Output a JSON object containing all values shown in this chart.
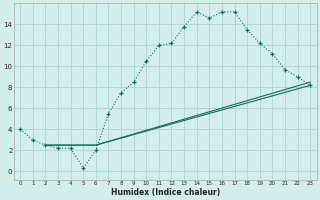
{
  "xlabel": "Humidex (Indice chaleur)",
  "bg_color": "#d4eeeb",
  "grid_color": "#b0d8d4",
  "line_color": "#1a6b5e",
  "xlim": [
    -0.5,
    23.5
  ],
  "ylim": [
    -0.8,
    16
  ],
  "xticks": [
    0,
    1,
    2,
    3,
    4,
    5,
    6,
    7,
    8,
    9,
    10,
    11,
    12,
    13,
    14,
    15,
    16,
    17,
    18,
    19,
    20,
    21,
    22,
    23
  ],
  "yticks": [
    0,
    2,
    4,
    6,
    8,
    10,
    12,
    14
  ],
  "curve1_x": [
    0,
    1,
    2,
    3,
    4,
    5,
    6,
    7,
    8,
    9,
    10,
    11,
    12,
    13,
    14,
    15,
    16,
    17,
    18,
    19,
    20,
    21,
    22,
    23
  ],
  "curve1_y": [
    4,
    3,
    2.5,
    2.2,
    2.2,
    0.3,
    2.0,
    5.5,
    7.5,
    8.5,
    10.5,
    12.0,
    12.2,
    13.8,
    15.2,
    14.6,
    15.2,
    15.2,
    13.5,
    12.2,
    11.2,
    9.7,
    9.0,
    8.2
  ],
  "line2_x": [
    2,
    6,
    23
  ],
  "line2_y": [
    2.5,
    2.5,
    8.2
  ],
  "line3_x": [
    2,
    6,
    23
  ],
  "line3_y": [
    2.5,
    2.5,
    8.5
  ]
}
